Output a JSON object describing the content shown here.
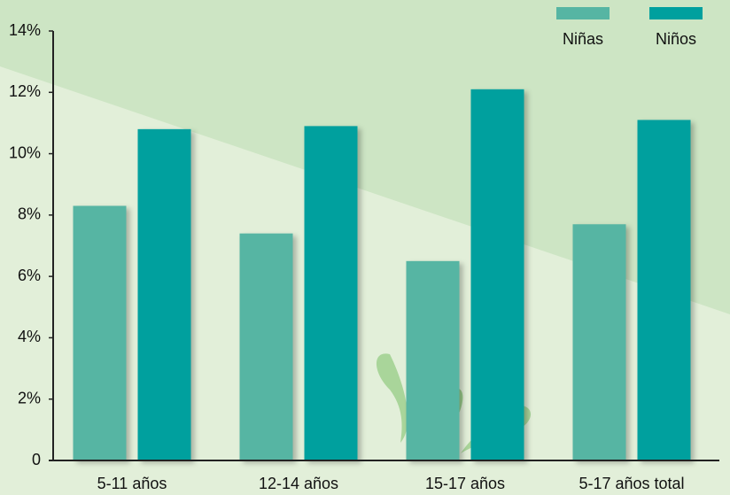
{
  "chart_data": {
    "type": "bar",
    "categories": [
      "5-11 años",
      "12-14 años",
      "15-17 años",
      "5-17 años total"
    ],
    "series": [
      {
        "name": "Niñas",
        "color": "#56b5a3",
        "values": [
          8.3,
          7.4,
          6.5,
          7.7
        ]
      },
      {
        "name": "Niños",
        "color": "#00a09e",
        "values": [
          10.8,
          10.9,
          12.1,
          11.1
        ]
      }
    ],
    "ylim": [
      0,
      14
    ],
    "yticks": [
      0,
      {
        "value": 2,
        "label": "2%"
      },
      {
        "value": 4,
        "label": "4%"
      },
      {
        "value": 6,
        "label": "6%"
      },
      {
        "value": 8,
        "label": "8%"
      },
      {
        "value": 10,
        "label": "10%"
      },
      {
        "value": 12,
        "label": "12%"
      },
      {
        "value": 14,
        "label": "14%"
      }
    ],
    "legend": "top-right"
  }
}
